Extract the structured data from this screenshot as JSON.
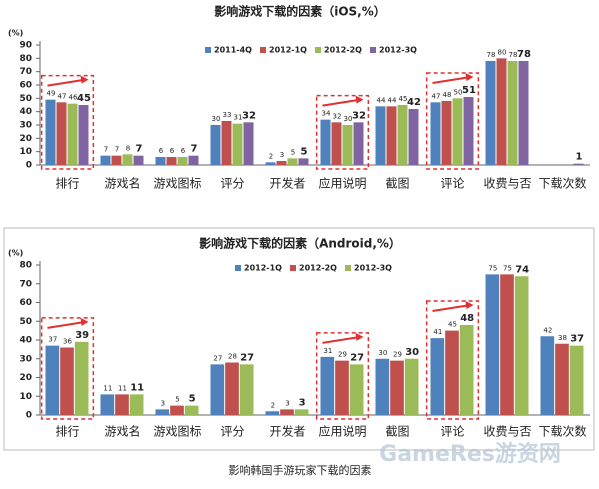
{
  "chart_data": [
    {
      "type": "bar",
      "title": "影响游戏下载的因素（iOS,%）",
      "y_label": "(%)",
      "categories": [
        "排行",
        "游戏名",
        "游戏图标",
        "评分",
        "开发者",
        "应用说明",
        "截图",
        "评论",
        "收费与否",
        "下载次数"
      ],
      "series": [
        {
          "name": "2011-4Q",
          "color": "#4f81bd",
          "values": [
            49,
            7,
            6,
            30,
            2,
            34,
            44,
            47,
            78,
            null
          ]
        },
        {
          "name": "2012-1Q",
          "color": "#c0504d",
          "values": [
            47,
            7,
            6,
            33,
            3,
            32,
            44,
            48,
            80,
            null
          ]
        },
        {
          "name": "2012-2Q",
          "color": "#9bbb59",
          "values": [
            46,
            8,
            6,
            31,
            5,
            30,
            45,
            50,
            78,
            null
          ]
        },
        {
          "name": "2012-3Q",
          "color": "#8064a2",
          "values": [
            45,
            7,
            7,
            32,
            5,
            32,
            42,
            51,
            78,
            1
          ]
        }
      ],
      "ylim": [
        0,
        90
      ],
      "yticks": [
        0,
        10,
        20,
        30,
        40,
        50,
        60,
        70,
        80,
        90
      ]
    },
    {
      "type": "bar",
      "title": "影响游戏下载的因素（Android,%）",
      "y_label": "(%)",
      "categories": [
        "排行",
        "游戏名",
        "游戏图标",
        "评分",
        "开发者",
        "应用说明",
        "截图",
        "评论",
        "收费与否",
        "下载次数"
      ],
      "series": [
        {
          "name": "2012-1Q",
          "color": "#4f81bd",
          "values": [
            37,
            11,
            3,
            27,
            2,
            31,
            30,
            41,
            75,
            42
          ]
        },
        {
          "name": "2012-2Q",
          "color": "#c0504d",
          "values": [
            36,
            11,
            5,
            28,
            3,
            29,
            29,
            45,
            75,
            38
          ]
        },
        {
          "name": "2012-3Q",
          "color": "#9bbb59",
          "values": [
            39,
            11,
            5,
            27,
            3,
            27,
            30,
            48,
            74,
            37
          ]
        }
      ],
      "ylim": [
        0,
        80
      ],
      "yticks": [
        0,
        10,
        20,
        30,
        40,
        50,
        60,
        70,
        80
      ]
    }
  ],
  "caption": "影响韩国手游玩家下载的因素",
  "watermark": "GameRes游资网"
}
